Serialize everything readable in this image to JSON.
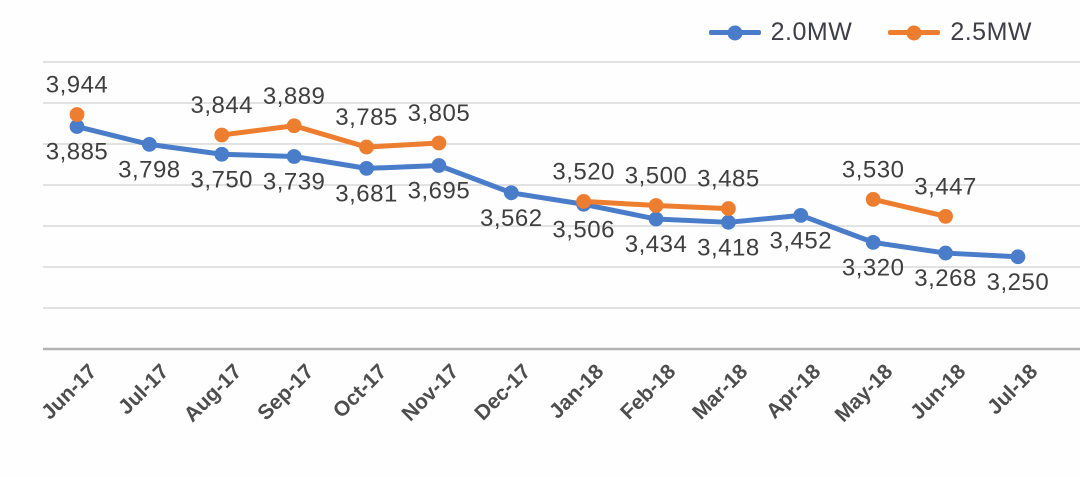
{
  "chart_data": {
    "type": "line",
    "title": "",
    "xlabel": "",
    "ylabel": "",
    "categories": [
      "Jun-17",
      "Jul-17",
      "Aug-17",
      "Sep-17",
      "Oct-17",
      "Nov-17",
      "Dec-17",
      "Jan-18",
      "Feb-18",
      "Mar-18",
      "Apr-18",
      "May-18",
      "Jun-18",
      "Jul-18"
    ],
    "series": [
      {
        "name": "2.0MW",
        "color": "#4a7dc9",
        "label_position": "below",
        "values": [
          3885,
          3798,
          3750,
          3739,
          3681,
          3695,
          3562,
          3506,
          3434,
          3418,
          3452,
          3320,
          3268,
          3250
        ]
      },
      {
        "name": "2.5MW",
        "color": "#ee7e2f",
        "label_position": "above",
        "values": [
          3944,
          null,
          3844,
          3889,
          3785,
          3805,
          null,
          3520,
          3500,
          3485,
          null,
          3530,
          3447,
          null
        ]
      }
    ],
    "ylim": [
      2800,
      4200
    ],
    "gridline_step": 200,
    "grid": true,
    "legend_position": "top-right",
    "value_label_format": "#,###",
    "x_tick_rotation_deg": 45,
    "y_axis_labels_visible": false
  }
}
